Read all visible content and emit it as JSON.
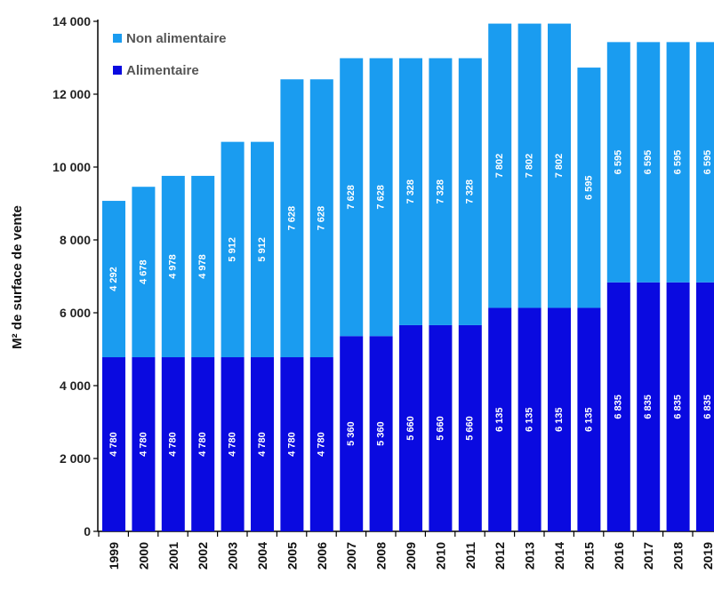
{
  "chart_data": {
    "type": "bar",
    "stacked": true,
    "categories": [
      "1999",
      "2000",
      "2001",
      "2002",
      "2003",
      "2004",
      "2005",
      "2006",
      "2007",
      "2008",
      "2009",
      "2010",
      "2011",
      "2012",
      "2013",
      "2014",
      "2015",
      "2016",
      "2017",
      "2018",
      "2019"
    ],
    "series": [
      {
        "name": "Alimentaire",
        "color": "#0a0ae0",
        "values": [
          4780,
          4780,
          4780,
          4780,
          4780,
          4780,
          4780,
          4780,
          5360,
          5360,
          5660,
          5660,
          5660,
          6135,
          6135,
          6135,
          6135,
          6835,
          6835,
          6835,
          6835
        ],
        "labels": [
          "4 780",
          "4 780",
          "4 780",
          "4 780",
          "4 780",
          "4 780",
          "4 780",
          "4 780",
          "5 360",
          "5 360",
          "5 660",
          "5 660",
          "5 660",
          "6 135",
          "6 135",
          "6 135",
          "6 135",
          "6 835",
          "6 835",
          "6 835",
          "6 835"
        ]
      },
      {
        "name": "Non alimentaire",
        "color": "#1a9cf0",
        "values": [
          4292,
          4678,
          4978,
          4978,
          5912,
          5912,
          7628,
          7628,
          7628,
          7628,
          7328,
          7328,
          7328,
          7802,
          7802,
          7802,
          6595,
          6595,
          6595,
          6595,
          6595
        ],
        "labels": [
          "4 292",
          "4 678",
          "4 978",
          "4 978",
          "5 912",
          "5 912",
          "7 628",
          "7 628",
          "7 628",
          "7 628",
          "7 328",
          "7 328",
          "7 328",
          "7 802",
          "7 802",
          "7 802",
          "6 595",
          "6 595",
          "6 595",
          "6 595",
          "6 595"
        ]
      }
    ],
    "title": "",
    "xlabel": "",
    "ylabel": "M² de surface de vente",
    "ylim": [
      0,
      14000
    ],
    "yticks": [
      0,
      2000,
      4000,
      6000,
      8000,
      10000,
      12000,
      14000
    ],
    "ytick_labels": [
      "0",
      "2 000",
      "4 000",
      "6 000",
      "8 000",
      "10 000",
      "12 000",
      "14 000"
    ],
    "legend": {
      "position": "top-left",
      "entries": [
        "Non alimentaire",
        "Alimentaire"
      ]
    },
    "grid": false
  }
}
